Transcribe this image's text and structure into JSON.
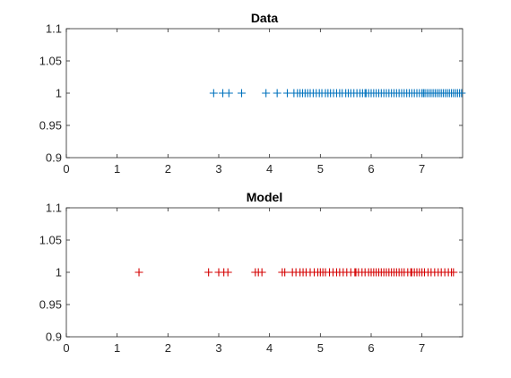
{
  "chart_data": [
    {
      "type": "scatter",
      "title": "Data",
      "marker": "+",
      "color": "#0072bd",
      "xlim": [
        0,
        7.8
      ],
      "ylim": [
        0.9,
        1.1
      ],
      "xticks": [
        0,
        1,
        2,
        3,
        4,
        5,
        6,
        7
      ],
      "yticks": [
        0.9,
        0.95,
        1,
        1.05,
        1.1
      ],
      "xtick_labels": [
        "0",
        "1",
        "2",
        "3",
        "4",
        "5",
        "6",
        "7"
      ],
      "ytick_labels": [
        "0.9",
        "0.95",
        "1",
        "1.05",
        "1.1"
      ],
      "grid": false,
      "y_value": 1,
      "x": [
        2.9,
        3.08,
        3.2,
        3.45,
        3.93,
        4.15,
        4.35,
        4.48,
        4.55,
        4.6,
        4.65,
        4.7,
        4.75,
        4.8,
        4.86,
        4.92,
        4.98,
        5.03,
        5.1,
        5.15,
        5.2,
        5.26,
        5.32,
        5.38,
        5.43,
        5.5,
        5.55,
        5.6,
        5.66,
        5.72,
        5.78,
        5.83,
        5.88,
        5.9,
        5.95,
        6.0,
        6.05,
        6.1,
        6.15,
        6.2,
        6.25,
        6.3,
        6.35,
        6.4,
        6.45,
        6.5,
        6.55,
        6.6,
        6.65,
        6.7,
        6.75,
        6.8,
        6.85,
        6.9,
        6.95,
        7.0,
        7.03,
        7.06,
        7.1,
        7.14,
        7.18,
        7.22,
        7.26,
        7.3,
        7.34,
        7.38,
        7.42,
        7.46,
        7.5,
        7.54,
        7.58,
        7.62,
        7.66,
        7.7,
        7.74,
        7.78
      ]
    },
    {
      "type": "scatter",
      "title": "Model",
      "marker": "+",
      "color": "#d40000",
      "xlim": [
        0,
        7.8
      ],
      "ylim": [
        0.9,
        1.1
      ],
      "xticks": [
        0,
        1,
        2,
        3,
        4,
        5,
        6,
        7
      ],
      "yticks": [
        0.9,
        0.95,
        1,
        1.05,
        1.1
      ],
      "xtick_labels": [
        "0",
        "1",
        "2",
        "3",
        "4",
        "5",
        "6",
        "7"
      ],
      "ytick_labels": [
        "0.9",
        "0.95",
        "1",
        "1.05",
        "1.1"
      ],
      "grid": false,
      "y_value": 1,
      "x": [
        1.43,
        2.8,
        3.0,
        3.1,
        3.18,
        3.72,
        3.78,
        3.85,
        4.25,
        4.3,
        4.45,
        4.52,
        4.6,
        4.66,
        4.72,
        4.8,
        4.88,
        4.95,
        5.0,
        5.05,
        5.1,
        5.18,
        5.25,
        5.32,
        5.38,
        5.45,
        5.52,
        5.6,
        5.68,
        5.7,
        5.75,
        5.82,
        5.88,
        5.95,
        6.0,
        6.05,
        6.1,
        6.15,
        6.2,
        6.25,
        6.3,
        6.35,
        6.4,
        6.45,
        6.5,
        6.55,
        6.6,
        6.65,
        6.72,
        6.78,
        6.8,
        6.85,
        6.9,
        6.95,
        7.0,
        7.05,
        7.12,
        7.18,
        7.25,
        7.32,
        7.38,
        7.45,
        7.52,
        7.58,
        7.62
      ]
    }
  ]
}
